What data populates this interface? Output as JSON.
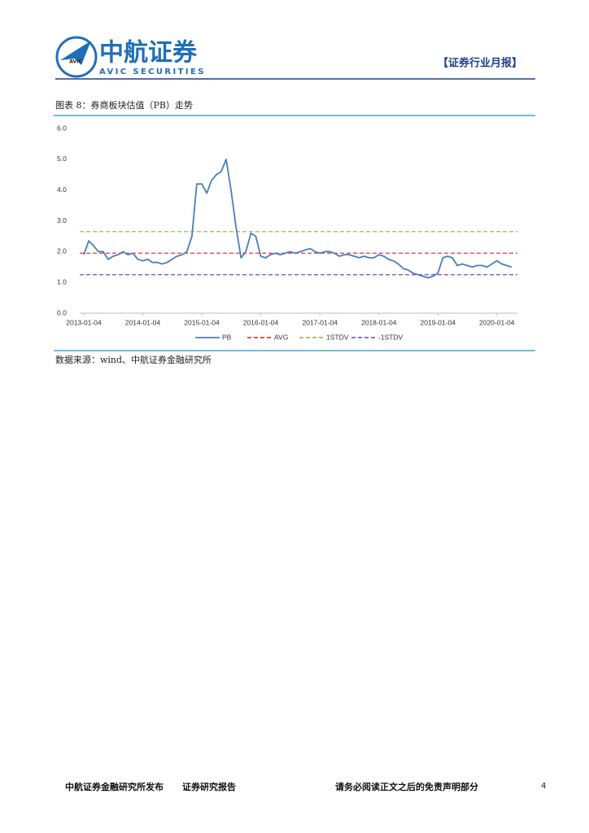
{
  "header": {
    "logo_mark": "AVIC",
    "company": "中航证券",
    "company_en": "AVIC SECURITIES",
    "report_type": "【证券行业月报】"
  },
  "figure": {
    "caption": "图表 8：券商板块估值（PB）走势",
    "source": "数据来源：wind、中航证券金融研究所"
  },
  "chart_data": {
    "type": "line",
    "x": [
      "2013-01-04",
      "2013-02-04",
      "2013-03-04",
      "2013-04-04",
      "2013-05-04",
      "2013-06-04",
      "2013-07-04",
      "2013-08-04",
      "2013-09-04",
      "2013-10-04",
      "2013-11-04",
      "2013-12-04",
      "2014-01-04",
      "2014-02-04",
      "2014-03-04",
      "2014-04-04",
      "2014-05-04",
      "2014-06-04",
      "2014-07-04",
      "2014-08-04",
      "2014-09-04",
      "2014-10-04",
      "2014-11-04",
      "2014-12-04",
      "2015-01-04",
      "2015-02-04",
      "2015-03-04",
      "2015-04-04",
      "2015-05-04",
      "2015-06-04",
      "2015-07-04",
      "2015-08-04",
      "2015-09-04",
      "2015-10-04",
      "2015-11-04",
      "2015-12-04",
      "2016-01-04",
      "2016-02-04",
      "2016-03-04",
      "2016-04-04",
      "2016-05-04",
      "2016-06-04",
      "2016-07-04",
      "2016-08-04",
      "2016-09-04",
      "2016-10-04",
      "2016-11-04",
      "2016-12-04",
      "2017-01-04",
      "2017-02-04",
      "2017-03-04",
      "2017-04-04",
      "2017-05-04",
      "2017-06-04",
      "2017-07-04",
      "2017-08-04",
      "2017-09-04",
      "2017-10-04",
      "2017-11-04",
      "2017-12-04",
      "2018-01-04",
      "2018-02-04",
      "2018-03-04",
      "2018-04-04",
      "2018-05-04",
      "2018-06-04",
      "2018-07-04",
      "2018-08-04",
      "2018-09-04",
      "2018-10-04",
      "2018-11-04",
      "2018-12-04",
      "2019-01-04",
      "2019-02-04",
      "2019-03-04",
      "2019-04-04",
      "2019-05-04",
      "2019-06-04",
      "2019-07-04",
      "2019-08-04",
      "2019-09-04",
      "2019-10-04",
      "2019-11-04",
      "2019-12-04",
      "2020-01-04",
      "2020-02-04",
      "2020-03-04",
      "2020-04-04"
    ],
    "series": [
      {
        "name": "PB",
        "color": "#4a7ebb",
        "values": [
          1.9,
          2.35,
          2.2,
          2.0,
          2.0,
          1.75,
          1.85,
          1.9,
          2.0,
          1.9,
          1.95,
          1.75,
          1.7,
          1.75,
          1.65,
          1.65,
          1.6,
          1.65,
          1.75,
          1.85,
          1.9,
          2.0,
          2.5,
          4.2,
          4.2,
          3.9,
          4.3,
          4.5,
          4.6,
          5.0,
          4.0,
          2.8,
          1.8,
          2.0,
          2.6,
          2.5,
          1.85,
          1.8,
          1.9,
          1.95,
          1.9,
          1.95,
          2.0,
          1.95,
          2.0,
          2.05,
          2.1,
          2.0,
          1.95,
          2.0,
          2.0,
          1.95,
          1.85,
          1.9,
          1.9,
          1.85,
          1.8,
          1.85,
          1.8,
          1.8,
          1.9,
          1.85,
          1.75,
          1.7,
          1.6,
          1.45,
          1.4,
          1.3,
          1.25,
          1.2,
          1.15,
          1.2,
          1.3,
          1.8,
          1.85,
          1.8,
          1.55,
          1.6,
          1.55,
          1.5,
          1.55,
          1.55,
          1.5,
          1.6,
          1.7,
          1.6,
          1.55,
          1.5
        ]
      }
    ],
    "reference_lines": [
      {
        "name": "AVG",
        "color": "#e03c3c",
        "value": 1.95
      },
      {
        "name": "1STDV",
        "color": "#9bbb59",
        "value": 2.65
      },
      {
        "name": "-1STDV",
        "color": "#7a62b5",
        "value": 1.25
      }
    ],
    "xlim": [
      "2013-01-04",
      "2020-04-30"
    ],
    "xticks": [
      "2013-01-04",
      "2014-01-04",
      "2015-01-04",
      "2016-01-04",
      "2017-01-04",
      "2018-01-04",
      "2019-01-04",
      "2020-01-04"
    ],
    "ylim": [
      0,
      6
    ],
    "yticks": [
      {
        "value": 0,
        "label": "0.0"
      },
      {
        "value": 1,
        "label": "1.0"
      },
      {
        "value": 2,
        "label": "2.0"
      },
      {
        "value": 3,
        "label": "3.0"
      },
      {
        "value": 4,
        "label": "4.0"
      },
      {
        "value": 5,
        "label": "5.0"
      },
      {
        "value": 6,
        "label": "6.0"
      }
    ],
    "legend": "bottom"
  },
  "footer": {
    "publisher": "中航证券金融研究所发布",
    "report_kind": "证券研究报告",
    "disclaimer": "请务必阅读正文之后的免责声明部分",
    "page": "4"
  }
}
